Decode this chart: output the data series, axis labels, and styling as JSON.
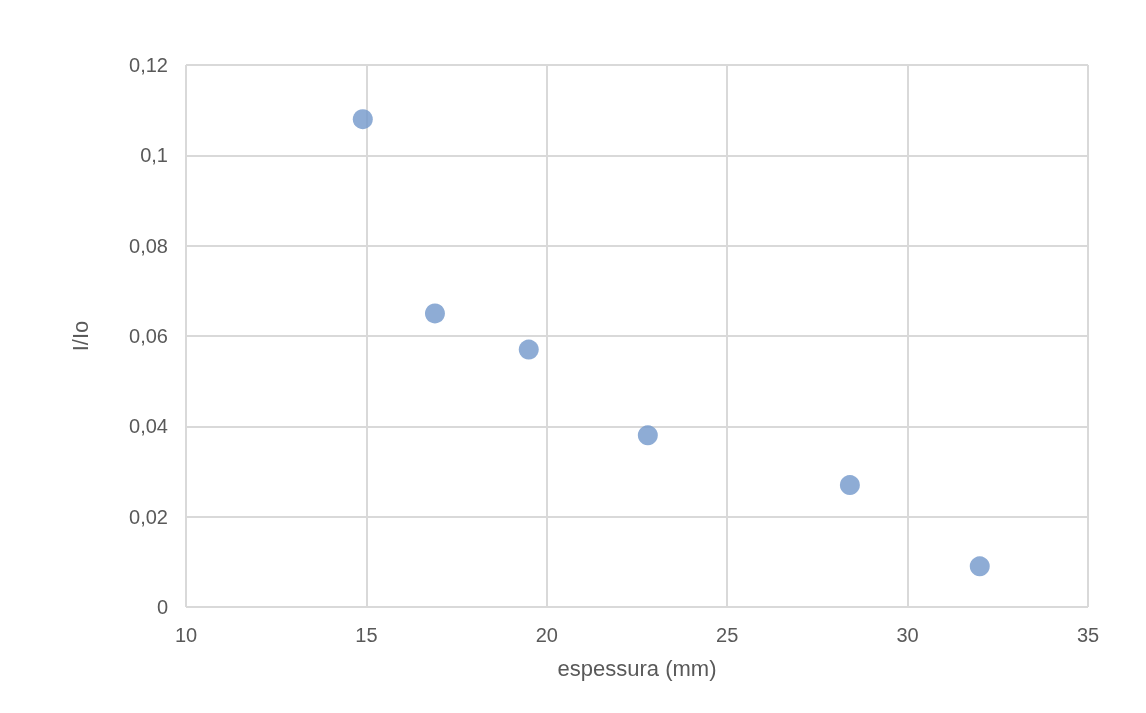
{
  "chart_data": {
    "type": "scatter",
    "xlabel": "espessura (mm)",
    "ylabel": "I/Io",
    "x": [
      14.9,
      16.9,
      19.5,
      22.8,
      28.4,
      32.0
    ],
    "values": [
      0.108,
      0.065,
      0.057,
      0.038,
      0.027,
      0.009
    ],
    "color": "#7297cb",
    "marker": "circle",
    "xlim": [
      10,
      35
    ],
    "xticks": [
      10,
      15,
      20,
      25,
      30,
      35
    ],
    "ylim": [
      0,
      0.12
    ],
    "yticks": [
      0,
      {
        "value": 0.02,
        "label": "0,02"
      },
      {
        "value": 0.04,
        "label": "0,04"
      },
      {
        "value": 0.06,
        "label": "0,06"
      },
      {
        "value": 0.08,
        "label": "0,08"
      },
      {
        "value": 0.1,
        "label": "0,1"
      },
      {
        "value": 0.12,
        "label": "0,12"
      }
    ],
    "grid": true
  }
}
